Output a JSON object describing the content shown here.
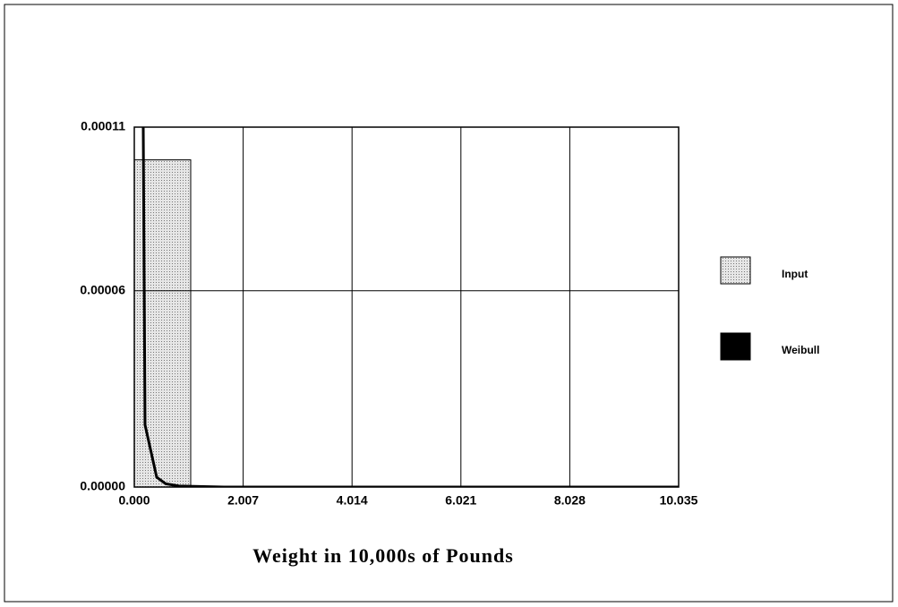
{
  "chart_data": {
    "type": "histogram",
    "x_label": "Weight in 10,000s of Pounds",
    "xlim": [
      0,
      10.035
    ],
    "xticks": [
      {
        "value": 0,
        "label": "0.000"
      },
      2.007,
      4.014,
      6.021,
      8.028,
      10.035
    ],
    "ylim": [
      0,
      0.00011
    ],
    "yticks": [
      {
        "value": 0,
        "label": "0.00000"
      },
      {
        "value": 6e-05,
        "label": "0.00006"
      },
      {
        "value": 0.00011,
        "label": "0.00011"
      }
    ],
    "grid": true,
    "legend": "right",
    "series": [
      {
        "name": "Input",
        "type": "histogram",
        "color": "#c8c8c8",
        "bins": [
          0,
          1.04
        ],
        "values": [
          0.0001
        ]
      },
      {
        "name": "Weibull",
        "type": "line",
        "color": "#000000",
        "x": [
          0.165,
          0.198,
          0.413,
          0.578,
          0.825,
          1.65,
          10.035
        ],
        "values": [
          0.00011,
          1.9e-05,
          3e-06,
          1e-06,
          3e-07,
          0,
          0
        ]
      }
    ]
  }
}
